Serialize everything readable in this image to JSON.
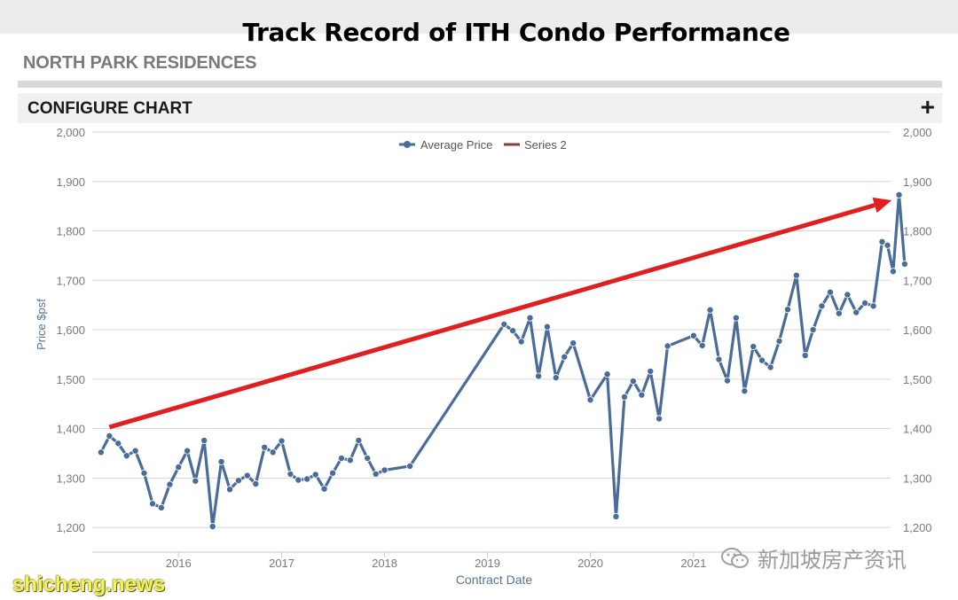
{
  "slide": {
    "title": "Track Record of ITH Condo Performance"
  },
  "page": {
    "project_name": "NORTH PARK RESIDENCES"
  },
  "config": {
    "label": "CONFIGURE CHART",
    "expand_symbol": "+"
  },
  "colors": {
    "series": "#4a6c99",
    "arrow": "#e01f1f",
    "series2": "#8b3a3a",
    "grid": "#d6d6d6",
    "axis_text": "#7a7a7a"
  },
  "chart_data": {
    "type": "line",
    "ylabel": "Price $psf",
    "xlabel": "Contract Date",
    "ylim": [
      1150,
      2000
    ],
    "y_ticks": [
      1200,
      1300,
      1400,
      1500,
      1600,
      1700,
      1800,
      1900,
      2000
    ],
    "y_tick_labels": [
      "1,200",
      "1,300",
      "1,400",
      "1,500",
      "1,600",
      "1,700",
      "1,800",
      "1,900",
      "2,000"
    ],
    "x_range": [
      "2015-03-01",
      "2022-12-01"
    ],
    "x_tick_labels": [
      "2016",
      "2017",
      "2018",
      "2019",
      "2020",
      "2021"
    ],
    "x_tick_dates": [
      "2016-01-01",
      "2017-01-01",
      "2018-01-01",
      "2019-01-01",
      "2020-01-01",
      "2021-01-01"
    ],
    "legend": {
      "placement": "top-center"
    },
    "series": [
      {
        "name": "Average Price",
        "points": [
          [
            "2015-04-01",
            1352
          ],
          [
            "2015-05-01",
            1385
          ],
          [
            "2015-06-01",
            1370
          ],
          [
            "2015-07-01",
            1345
          ],
          [
            "2015-08-01",
            1355
          ],
          [
            "2015-09-01",
            1310
          ],
          [
            "2015-10-01",
            1248
          ],
          [
            "2015-11-01",
            1240
          ],
          [
            "2015-12-01",
            1287
          ],
          [
            "2016-01-01",
            1322
          ],
          [
            "2016-02-01",
            1355
          ],
          [
            "2016-03-01",
            1294
          ],
          [
            "2016-04-01",
            1376
          ],
          [
            "2016-05-01",
            1202
          ],
          [
            "2016-06-01",
            1333
          ],
          [
            "2016-07-01",
            1277
          ],
          [
            "2016-08-01",
            1295
          ],
          [
            "2016-09-01",
            1305
          ],
          [
            "2016-10-01",
            1288
          ],
          [
            "2016-11-01",
            1362
          ],
          [
            "2016-12-01",
            1352
          ],
          [
            "2017-01-01",
            1375
          ],
          [
            "2017-02-01",
            1308
          ],
          [
            "2017-03-01",
            1296
          ],
          [
            "2017-04-01",
            1298
          ],
          [
            "2017-05-01",
            1307
          ],
          [
            "2017-06-01",
            1278
          ],
          [
            "2017-07-01",
            1310
          ],
          [
            "2017-08-01",
            1340
          ],
          [
            "2017-09-01",
            1336
          ],
          [
            "2017-10-01",
            1376
          ],
          [
            "2017-11-01",
            1340
          ],
          [
            "2017-12-01",
            1308
          ],
          [
            "2018-01-01",
            1316
          ],
          [
            "2018-04-01",
            1324
          ],
          [
            "2019-03-01",
            1611
          ],
          [
            "2019-04-01",
            1598
          ],
          [
            "2019-05-01",
            1576
          ],
          [
            "2019-06-01",
            1624
          ],
          [
            "2019-07-01",
            1506
          ],
          [
            "2019-08-01",
            1606
          ],
          [
            "2019-09-01",
            1503
          ],
          [
            "2019-10-01",
            1545
          ],
          [
            "2019-11-01",
            1573
          ],
          [
            "2020-01-01",
            1458
          ],
          [
            "2020-03-01",
            1510
          ],
          [
            "2020-04-01",
            1222
          ],
          [
            "2020-05-01",
            1464
          ],
          [
            "2020-06-01",
            1496
          ],
          [
            "2020-07-01",
            1468
          ],
          [
            "2020-08-01",
            1516
          ],
          [
            "2020-09-01",
            1420
          ],
          [
            "2020-10-01",
            1567
          ],
          [
            "2021-01-01",
            1588
          ],
          [
            "2021-02-01",
            1568
          ],
          [
            "2021-03-01",
            1640
          ],
          [
            "2021-04-01",
            1540
          ],
          [
            "2021-05-01",
            1497
          ],
          [
            "2021-06-01",
            1624
          ],
          [
            "2021-07-01",
            1476
          ],
          [
            "2021-08-01",
            1566
          ],
          [
            "2021-09-01",
            1538
          ],
          [
            "2021-10-01",
            1524
          ],
          [
            "2021-11-01",
            1577
          ],
          [
            "2021-12-01",
            1641
          ],
          [
            "2022-01-01",
            1710
          ],
          [
            "2022-02-01",
            1548
          ],
          [
            "2022-03-01",
            1600
          ],
          [
            "2022-04-01",
            1648
          ],
          [
            "2022-05-01",
            1676
          ],
          [
            "2022-06-01",
            1633
          ],
          [
            "2022-07-01",
            1671
          ],
          [
            "2022-08-01",
            1635
          ],
          [
            "2022-09-01",
            1654
          ],
          [
            "2022-10-01",
            1648
          ],
          [
            "2022-11-01",
            1778
          ],
          [
            "2022-11-20",
            1771
          ],
          [
            "2022-12-10",
            1718
          ],
          [
            "2022-12-31",
            1873
          ],
          [
            "2023-01-20",
            1733
          ]
        ]
      },
      {
        "name": "Series 2",
        "points": []
      }
    ],
    "annotations": [
      {
        "type": "trend-arrow",
        "from": [
          "2015-05-01",
          1403
        ],
        "to": [
          "2022-12-05",
          1862
        ]
      }
    ]
  },
  "watermarks": {
    "left": "shicheng.news",
    "right": "新加坡房产资讯"
  }
}
